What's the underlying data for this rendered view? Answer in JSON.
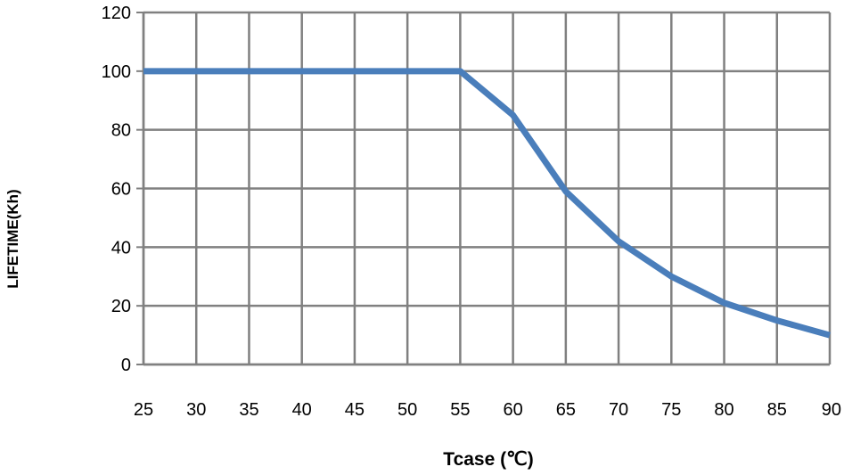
{
  "chart_data": {
    "type": "line",
    "title": "",
    "xlabel": "Tcase (℃)",
    "ylabel": "LIFETIME(Kh)",
    "x": [
      25,
      30,
      35,
      40,
      45,
      50,
      55,
      60,
      65,
      70,
      75,
      80,
      85,
      90
    ],
    "series": [
      {
        "values": [
          100,
          100,
          100,
          100,
          100,
          100,
          100,
          85,
          59,
          42,
          30,
          21,
          15,
          10
        ]
      }
    ],
    "xlim": [
      25,
      90
    ],
    "ylim": [
      0,
      120
    ],
    "x_ticks": [
      "25",
      "30",
      "35",
      "40",
      "45",
      "50",
      "55",
      "60",
      "65",
      "70",
      "75",
      "80",
      "85",
      "90"
    ],
    "y_ticks": [
      "0",
      "20",
      "40",
      "60",
      "80",
      "100",
      "120"
    ],
    "grid": true,
    "legend": "none",
    "colors": {
      "line": "#4A7EBB",
      "grid": "#808080",
      "text": "#000000"
    }
  }
}
